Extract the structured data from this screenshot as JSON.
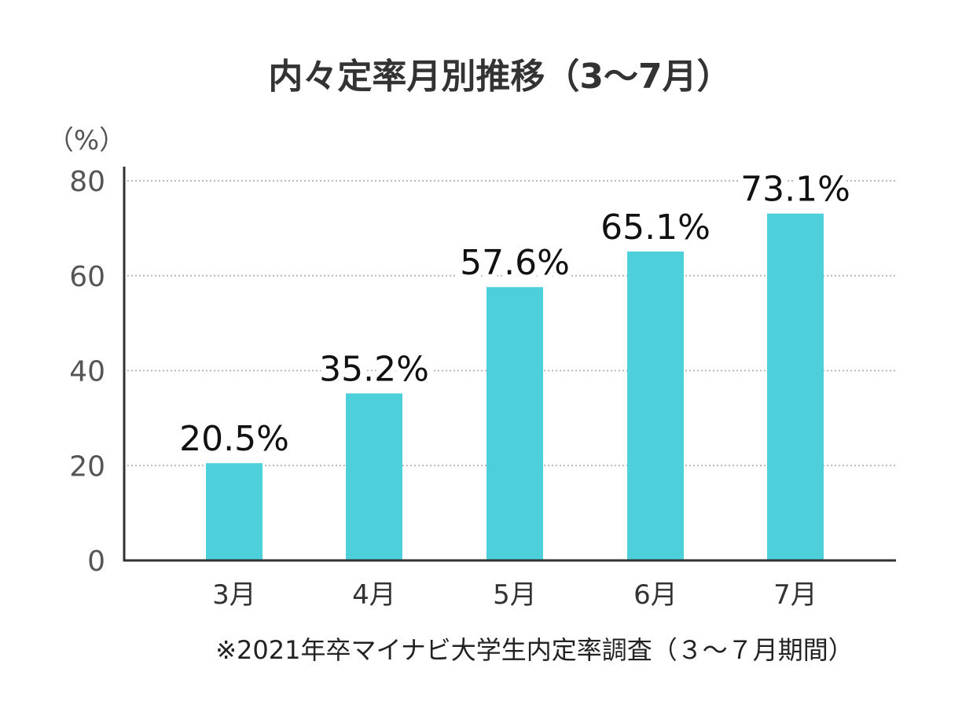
{
  "chart_data": {
    "type": "bar",
    "title": "内々定率月別推移（3〜7月）",
    "ylabel": "（%）",
    "xlabel": "",
    "categories": [
      "3月",
      "4月",
      "5月",
      "6月",
      "7月"
    ],
    "values": [
      20.5,
      35.2,
      57.6,
      65.1,
      73.1
    ],
    "data_labels": [
      "20.5%",
      "35.2%",
      "57.6%",
      "65.1%",
      "73.1%"
    ],
    "ylim": [
      0,
      80
    ],
    "yticks": [
      0,
      20,
      40,
      60,
      80
    ],
    "grid": true,
    "bar_color": "#4dd0da",
    "footnote": "※2021年卒マイナビ大学生内定率調査（３～７月期間）"
  }
}
